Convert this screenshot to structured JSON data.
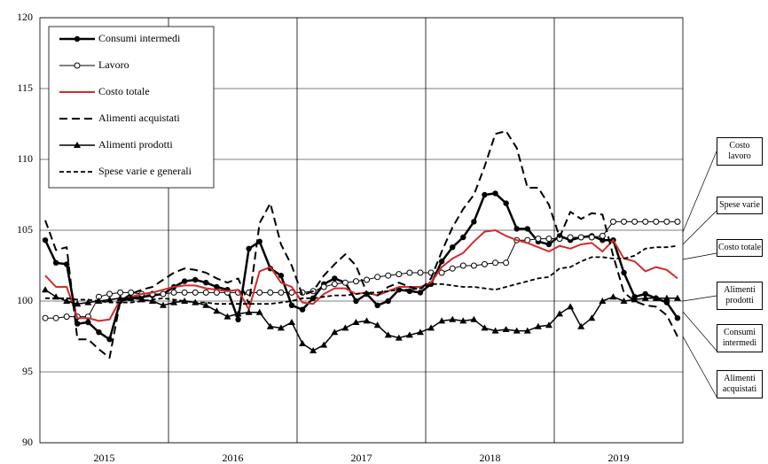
{
  "chart_data": {
    "type": "line",
    "categories": [
      null,
      null,
      null,
      null,
      null,
      "2015",
      null,
      null,
      null,
      null,
      null,
      null,
      null,
      null,
      null,
      null,
      null,
      "2016",
      null,
      null,
      null,
      null,
      null,
      null,
      null,
      null,
      null,
      null,
      null,
      "2017",
      null,
      null,
      null,
      null,
      null,
      null,
      null,
      null,
      null,
      null,
      null,
      "2018",
      null,
      null,
      null,
      null,
      null,
      null,
      null,
      null,
      null,
      null,
      null,
      "2019",
      null,
      null,
      null,
      null,
      null,
      null
    ],
    "ylim": [
      90,
      120
    ],
    "yticks": [
      90,
      95,
      100,
      105,
      110,
      115,
      120
    ],
    "grid": true,
    "legend": "top-left",
    "series": [
      {
        "name": "Consumi intermedi",
        "color": "#000000",
        "line": "solid",
        "width": 2.5,
        "marker": "circle",
        "values": [
          104.3,
          102.7,
          102.6,
          98.4,
          98.5,
          97.8,
          97.3,
          100.0,
          100.2,
          100.3,
          100.4,
          100.5,
          101.0,
          101.4,
          101.5,
          101.3,
          101.0,
          100.8,
          98.7,
          103.7,
          104.2,
          102.3,
          101.8,
          99.7,
          99.4,
          100.2,
          101.2,
          101.6,
          101.3,
          100.0,
          100.5,
          99.7,
          100.0,
          100.8,
          100.7,
          100.6,
          101.2,
          102.8,
          103.8,
          104.5,
          105.6,
          107.5,
          107.6,
          106.9,
          105.1,
          105.1,
          104.2,
          104.0,
          104.6,
          104.3,
          104.5,
          104.6,
          104.3,
          104.3,
          102.0,
          100.3,
          100.5,
          100.2,
          99.9,
          98.8
        ]
      },
      {
        "name": "Lavoro",
        "color": "#000000",
        "line": "solid",
        "width": 1,
        "marker": "open-circle",
        "values": [
          98.8,
          98.8,
          98.9,
          98.9,
          98.9,
          100.3,
          100.5,
          100.6,
          100.6,
          100.5,
          100.5,
          100.5,
          100.6,
          100.6,
          100.6,
          100.6,
          100.6,
          100.6,
          100.6,
          100.6,
          100.6,
          100.6,
          100.6,
          100.6,
          100.6,
          100.7,
          101.0,
          101.2,
          101.3,
          101.4,
          101.5,
          101.7,
          101.8,
          101.9,
          102.0,
          102.0,
          102.0,
          102.0,
          102.3,
          102.5,
          102.5,
          102.6,
          102.7,
          102.7,
          104.3,
          104.3,
          104.4,
          104.4,
          104.4,
          104.5,
          104.5,
          104.5,
          104.6,
          105.6,
          105.6,
          105.6,
          105.6,
          105.6,
          105.6,
          105.6
        ]
      },
      {
        "name": "Costo totale",
        "color": "#d42a2a",
        "line": "solid",
        "width": 2,
        "marker": "none",
        "values": [
          101.8,
          101.0,
          101.0,
          98.8,
          98.8,
          98.6,
          98.7,
          100.1,
          100.3,
          100.5,
          100.6,
          100.8,
          101.0,
          101.1,
          101.1,
          100.9,
          100.8,
          100.7,
          100.8,
          99.4,
          102.1,
          102.4,
          101.3,
          101.0,
          99.9,
          99.8,
          100.5,
          100.9,
          100.9,
          100.5,
          100.6,
          100.4,
          100.7,
          101.0,
          101.0,
          101.0,
          101.3,
          102.4,
          103.0,
          103.4,
          104.2,
          104.9,
          105.0,
          104.6,
          104.3,
          104.1,
          103.8,
          103.5,
          103.9,
          103.7,
          104.0,
          104.1,
          103.5,
          104.3,
          103.0,
          102.8,
          102.1,
          102.4,
          102.2,
          101.6
        ]
      },
      {
        "name": "Alimenti acquistati",
        "color": "#000000",
        "line": "dash",
        "width": 2,
        "marker": "none",
        "values": [
          105.7,
          103.6,
          103.8,
          97.3,
          97.3,
          96.6,
          96.0,
          100.0,
          100.5,
          100.8,
          101.0,
          101.5,
          102.0,
          102.3,
          102.2,
          102.0,
          101.6,
          101.3,
          101.6,
          99.8,
          105.5,
          106.9,
          104.0,
          102.5,
          100.4,
          100.7,
          101.8,
          102.6,
          103.3,
          102.5,
          100.6,
          100.4,
          101.0,
          101.3,
          101.0,
          100.8,
          101.6,
          103.5,
          105.2,
          106.5,
          107.5,
          109.5,
          111.8,
          112.0,
          110.8,
          108.0,
          108.0,
          106.8,
          104.5,
          106.3,
          105.8,
          106.2,
          106.1,
          103.2,
          100.6,
          100.0,
          99.7,
          99.6,
          99.0,
          97.5
        ]
      },
      {
        "name": "Alimenti prodotti",
        "color": "#000000",
        "line": "solid",
        "width": 1.5,
        "marker": "triangle",
        "values": [
          100.8,
          100.3,
          100.0,
          99.8,
          99.9,
          100.0,
          100.1,
          100.2,
          100.2,
          100.1,
          100.0,
          99.7,
          99.9,
          100.0,
          99.9,
          99.7,
          99.3,
          98.9,
          99.1,
          99.2,
          99.2,
          98.2,
          98.1,
          98.5,
          97.0,
          96.5,
          96.9,
          97.8,
          98.1,
          98.5,
          98.6,
          98.3,
          97.6,
          97.4,
          97.6,
          97.8,
          98.1,
          98.6,
          98.7,
          98.6,
          98.7,
          98.1,
          97.9,
          98.0,
          97.9,
          97.9,
          98.2,
          98.3,
          99.1,
          99.6,
          98.2,
          98.8,
          100.0,
          100.3,
          100.0,
          100.1,
          100.2,
          100.2,
          100.2,
          100.2
        ]
      },
      {
        "name": "Spese varie e generali",
        "color": "#000000",
        "line": "shortdash",
        "width": 1.8,
        "marker": "none",
        "values": [
          100.2,
          100.2,
          100.2,
          100.1,
          100.1,
          100.0,
          99.9,
          99.9,
          99.9,
          100.0,
          100.1,
          100.2,
          100.1,
          100.0,
          99.9,
          99.9,
          99.8,
          99.8,
          99.8,
          99.8,
          99.8,
          99.8,
          99.9,
          100.0,
          100.2,
          100.2,
          100.3,
          100.4,
          100.4,
          100.5,
          100.6,
          100.6,
          100.7,
          100.8,
          100.8,
          100.9,
          101.2,
          101.2,
          101.1,
          101.0,
          101.0,
          100.9,
          100.8,
          101.0,
          101.2,
          101.4,
          101.6,
          101.7,
          102.3,
          102.4,
          102.8,
          103.1,
          103.1,
          103.0,
          103.0,
          103.2,
          103.7,
          103.8,
          103.8,
          103.9
        ]
      }
    ],
    "annotations": [
      "Costo lavoro",
      "Spese varie",
      "Costo totale",
      "Alimenti prodotti",
      "Consumi intermedi",
      "Alimenti acquistati"
    ]
  }
}
